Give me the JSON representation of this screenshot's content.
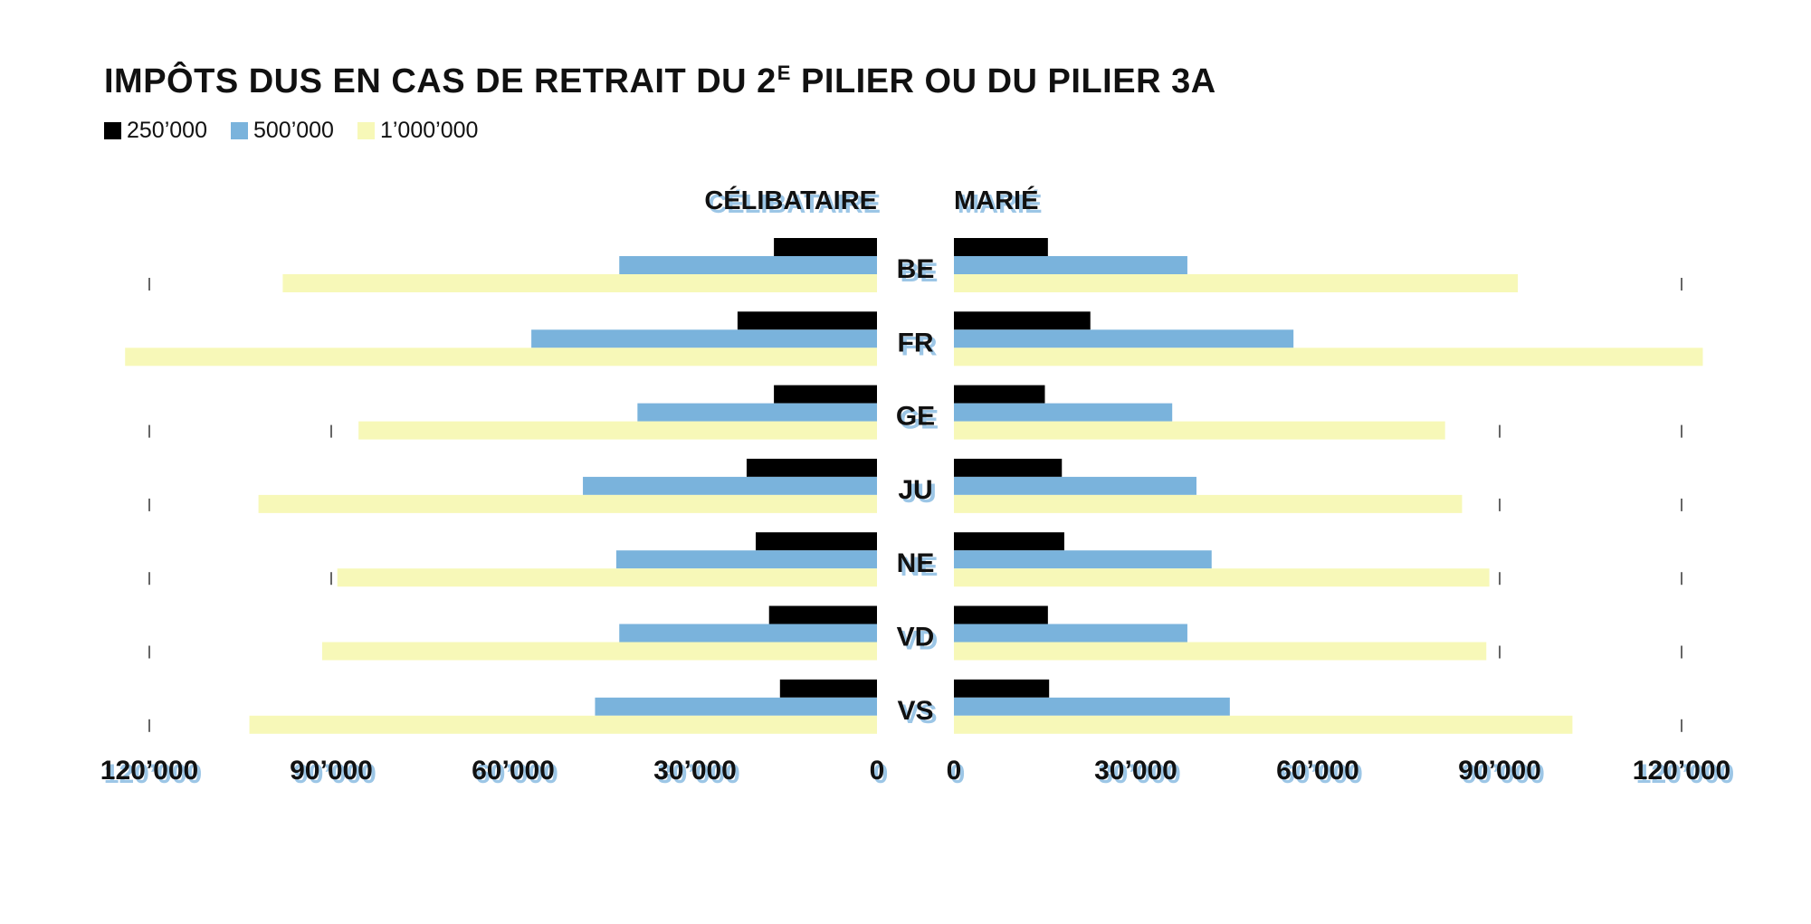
{
  "chart_data": {
    "type": "bar",
    "title_main": "IMPÔTS DUS EN CAS DE RETRAIT DU 2",
    "title_sup": "E",
    "title_tail": " PILIER OU DU PILIER 3A",
    "panels": [
      {
        "name": "CÉLIBATAIRE",
        "direction": "left"
      },
      {
        "name": "MARIÉ",
        "direction": "right"
      }
    ],
    "categories": [
      "BE",
      "FR",
      "GE",
      "JU",
      "NE",
      "VD",
      "VS"
    ],
    "series": [
      {
        "name": "250’000",
        "color": "#000000",
        "celibataire": [
          17000,
          23000,
          17000,
          21500,
          20000,
          17800,
          16000
        ],
        "marie": [
          15500,
          22500,
          15000,
          17800,
          18200,
          15500,
          15700
        ]
      },
      {
        "name": "500’000",
        "color": "#7ab3dc",
        "celibataire": [
          42500,
          57000,
          39500,
          48500,
          43000,
          42500,
          46500
        ],
        "marie": [
          38500,
          56000,
          36000,
          40000,
          42500,
          38500,
          45500
        ]
      },
      {
        "name": "1’000’000",
        "color": "#f7f8b8",
        "celibataire": [
          98000,
          124000,
          85500,
          102000,
          89000,
          91500,
          103500
        ],
        "marie": [
          93000,
          123500,
          81000,
          83800,
          88300,
          87800,
          102000
        ]
      }
    ],
    "xlim": [
      0,
      120000
    ],
    "ticks": [
      0,
      30000,
      60000,
      90000,
      120000
    ],
    "tick_labels_left": [
      "120’000",
      "90’000",
      "60’000",
      "30’000",
      "0"
    ],
    "tick_labels_right": [
      "0",
      "30’000",
      "60’000",
      "90’000",
      "120’000"
    ]
  }
}
